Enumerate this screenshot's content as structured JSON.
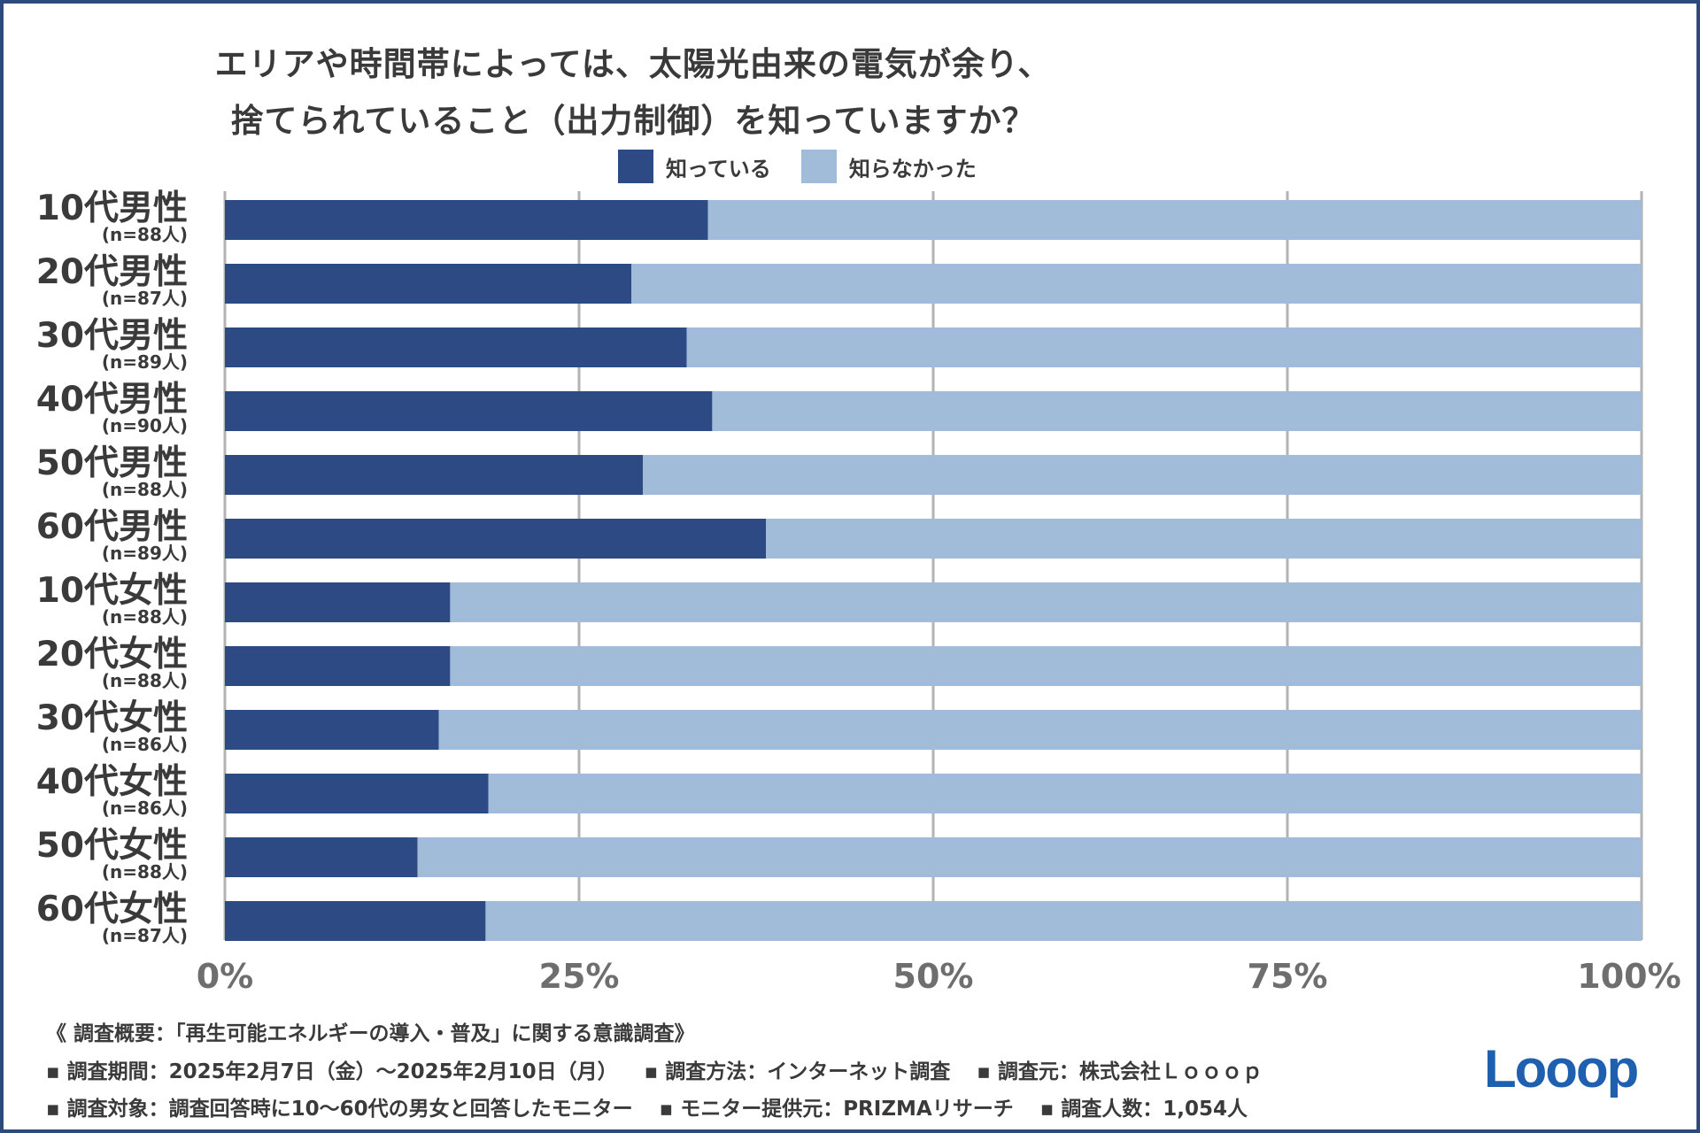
{
  "title": {
    "line1": "エリアや時間帯によっては、太陽光由来の電気が余り、",
    "line2": "捨てられていること（出力制御）を知っていますか？"
  },
  "legend": [
    {
      "label": "知っている",
      "color": "#2e4a85"
    },
    {
      "label": "知らなかった",
      "color": "#a0bcd8"
    }
  ],
  "chart_data": {
    "type": "bar",
    "orientation": "horizontal",
    "stacked": true,
    "percent": true,
    "categories": [
      {
        "group": "10代男性",
        "n": "(n=88人)"
      },
      {
        "group": "20代男性",
        "n": "(n=87人)"
      },
      {
        "group": "30代男性",
        "n": "(n=89人)"
      },
      {
        "group": "40代男性",
        "n": "(n=90人)"
      },
      {
        "group": "50代男性",
        "n": "(n=88人)"
      },
      {
        "group": "60代男性",
        "n": "(n=89人)"
      },
      {
        "group": "10代女性",
        "n": "(n=88人)"
      },
      {
        "group": "20代女性",
        "n": "(n=88人)"
      },
      {
        "group": "30代女性",
        "n": "(n=86人)"
      },
      {
        "group": "40代女性",
        "n": "(n=86人)"
      },
      {
        "group": "50代女性",
        "n": "(n=88人)"
      },
      {
        "group": "60代女性",
        "n": "(n=87人)"
      }
    ],
    "series": [
      {
        "name": "知っている",
        "values": [
          34.1,
          28.7,
          32.6,
          34.4,
          29.5,
          38.2,
          15.9,
          15.9,
          15.1,
          18.6,
          13.6,
          18.4
        ]
      },
      {
        "name": "知らなかった",
        "values": [
          65.9,
          71.3,
          67.4,
          65.6,
          70.5,
          61.8,
          84.1,
          84.1,
          84.9,
          81.4,
          86.4,
          81.6
        ]
      }
    ],
    "xlim": [
      0,
      100
    ],
    "xticks": [
      "0%",
      "25%",
      "50%",
      "75%",
      "100%"
    ],
    "grid": true
  },
  "footer": {
    "line1": "《 調査概要：「再生可能エネルギーの導入・普及」に関する意識調査》",
    "period": "▪ 調査期間：2025年2月7日（金）～2025年2月10日（月）",
    "method": "▪ 調査方法：インターネット調査",
    "source": "▪ 調査元：株式会社Ｌｏｏｏｐ",
    "target": "▪ 調査対象：調査回答時に10～60代の男女と回答したモニター",
    "provider": "▪ モニター提供元：PRIZMAリサーチ",
    "count": "▪ 調査人数：1,054人"
  },
  "logo": {
    "text": "Looop",
    "color": "#1e5fb0"
  }
}
